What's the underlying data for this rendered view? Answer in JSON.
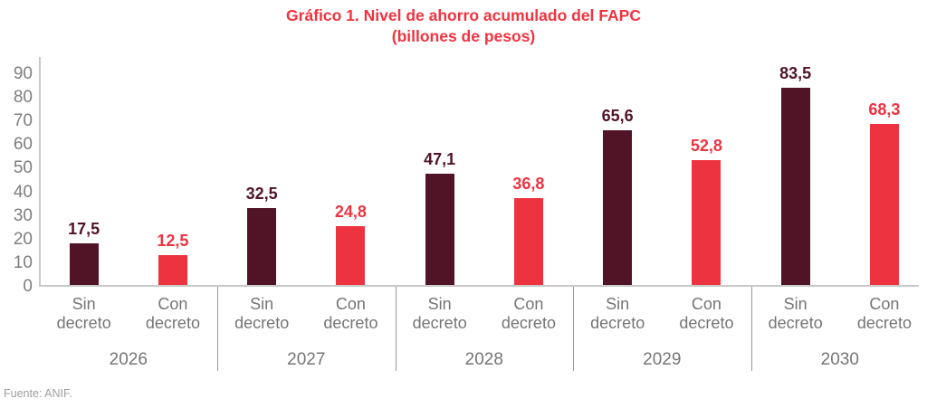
{
  "title": {
    "line1": "Gráfico 1. Nivel de ahorro acumulado del FAPC",
    "line2": "(billones de pesos)"
  },
  "source": "Fuente: ANIF.",
  "colors": {
    "title": "#F2333F",
    "sin_decreto": "#511326",
    "con_decreto": "#EE3340",
    "axis_text": "#7d7d7d",
    "label_text": "#757575",
    "axis_line": "#c9c9c9",
    "divider": "#9a9a9a",
    "source_text": "#9e9e9e"
  },
  "chart_data": {
    "type": "bar",
    "title": "Gráfico 1. Nivel de ahorro acumulado del FAPC (billones de pesos)",
    "categories": [
      "2026",
      "2027",
      "2028",
      "2029",
      "2030"
    ],
    "series": [
      {
        "name": "Sin decreto",
        "values": [
          17.5,
          32.5,
          47.1,
          65.6,
          83.5
        ],
        "labels": [
          "17,5",
          "32,5",
          "47,1",
          "65,6",
          "83,5"
        ],
        "color": "#511326"
      },
      {
        "name": "Con decreto",
        "values": [
          12.5,
          24.8,
          36.8,
          52.8,
          68.3
        ],
        "labels": [
          "12,5",
          "24,8",
          "36,8",
          "52,8",
          "68,3"
        ],
        "color": "#EE3340"
      }
    ],
    "ylim": [
      0,
      90
    ],
    "yticks": [
      0,
      10,
      20,
      30,
      40,
      50,
      60,
      70,
      80,
      90
    ],
    "grid": false,
    "legend": "none",
    "bar_value_labels": true,
    "xlabel": "",
    "ylabel": ""
  }
}
